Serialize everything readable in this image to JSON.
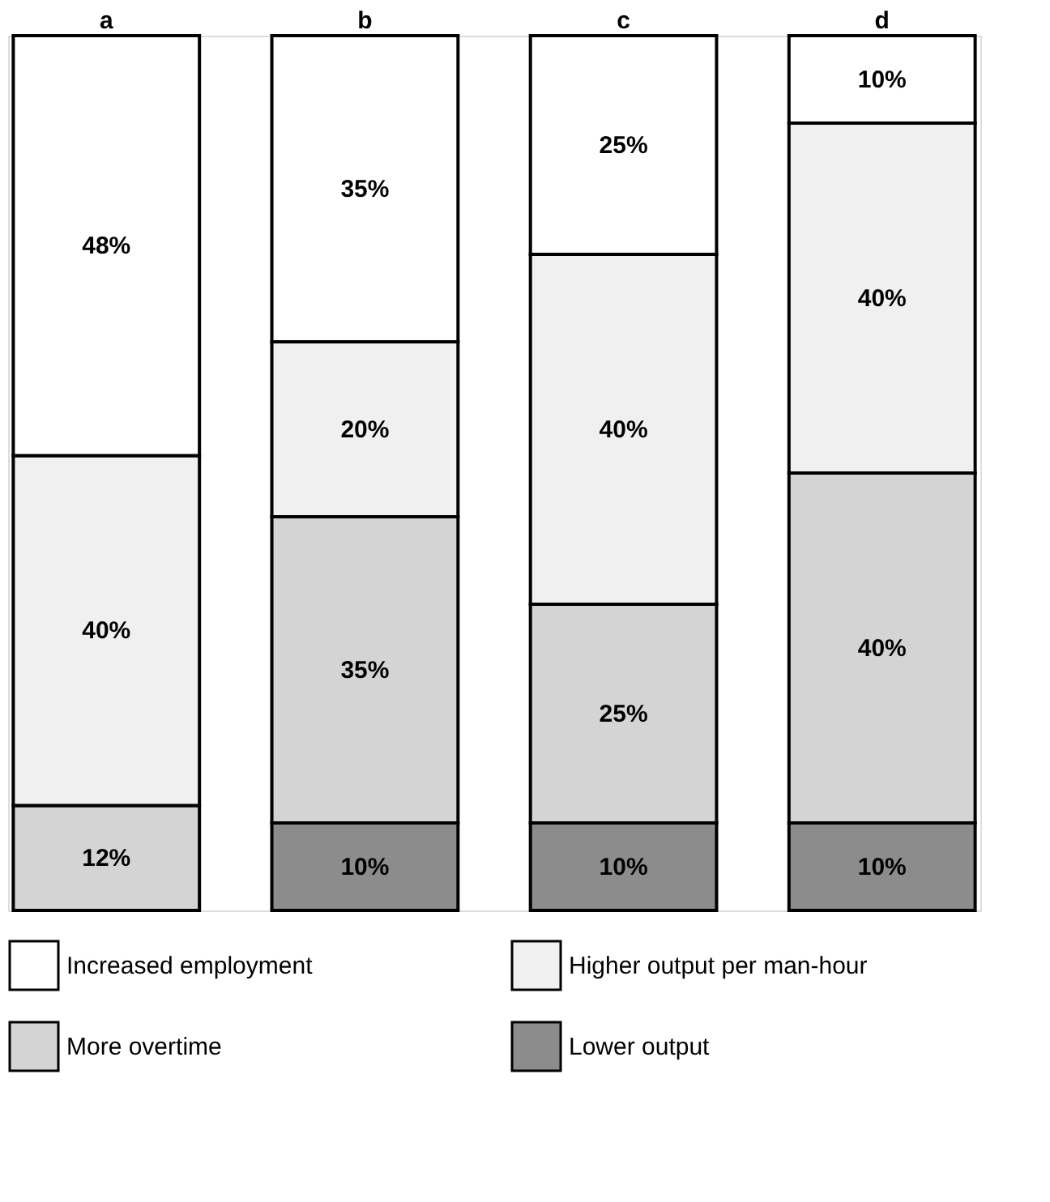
{
  "chart_data": {
    "type": "bar",
    "stacked": true,
    "categories": [
      "a",
      "b",
      "c",
      "d"
    ],
    "series": [
      {
        "name": "Lower output",
        "color": "#8c8c8c",
        "values": [
          0,
          10,
          10,
          10
        ],
        "value_labels": [
          null,
          "10%",
          "10%",
          "10%"
        ]
      },
      {
        "name": "More overtime",
        "color": "#d4d4d4",
        "values": [
          12,
          35,
          25,
          40
        ],
        "value_labels": [
          "12%",
          "35%",
          "25%",
          "40%"
        ]
      },
      {
        "name": "Higher output per man-hour",
        "color": "#f0f0f0",
        "values": [
          40,
          20,
          40,
          40
        ],
        "value_labels": [
          "40%",
          "20%",
          "40%",
          "40%"
        ]
      },
      {
        "name": "Increased employment",
        "color": "#ffffff",
        "values": [
          48,
          35,
          25,
          10
        ],
        "value_labels": [
          "48%",
          "35%",
          "25%",
          "10%"
        ]
      }
    ],
    "legend": "bottom"
  }
}
